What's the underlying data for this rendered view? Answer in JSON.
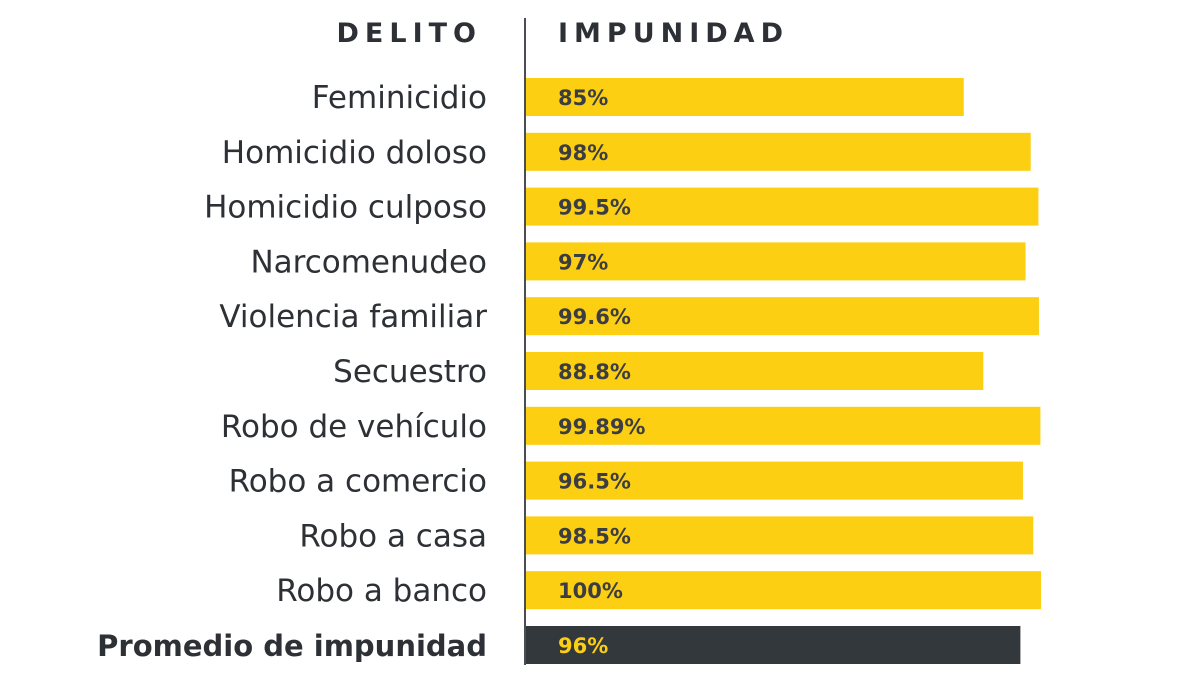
{
  "chart_data": {
    "type": "bar",
    "orientation": "horizontal",
    "headers": {
      "category": "DELITO",
      "value": "IMPUNIDAD"
    },
    "categories": [
      "Feminicidio",
      "Homicidio doloso",
      "Homicidio culposo",
      "Narcomenudeo",
      "Violencia familiar",
      "Secuestro",
      "Robo de vehículo",
      "Robo a comercio",
      "Robo a casa",
      "Robo a banco",
      "Promedio de impunidad"
    ],
    "values": [
      85,
      98,
      99.5,
      97,
      99.6,
      88.8,
      99.89,
      96.5,
      98.5,
      100,
      96
    ],
    "value_labels": [
      "85%",
      "98%",
      "99.5%",
      "97%",
      "99.6%",
      "88.8%",
      "99.89%",
      "96.5%",
      "98.5%",
      "100%",
      "96%"
    ],
    "highlight": [
      false,
      false,
      false,
      false,
      false,
      false,
      false,
      false,
      false,
      false,
      true
    ],
    "xlim": [
      0,
      100
    ],
    "colors": {
      "bar": "#fccf12",
      "highlight_bar": "#33383d",
      "bar_text": "#3b3d42",
      "highlight_text": "#fccf12",
      "label_text": "#2d3136",
      "axis_line": "#4a4e54"
    }
  }
}
